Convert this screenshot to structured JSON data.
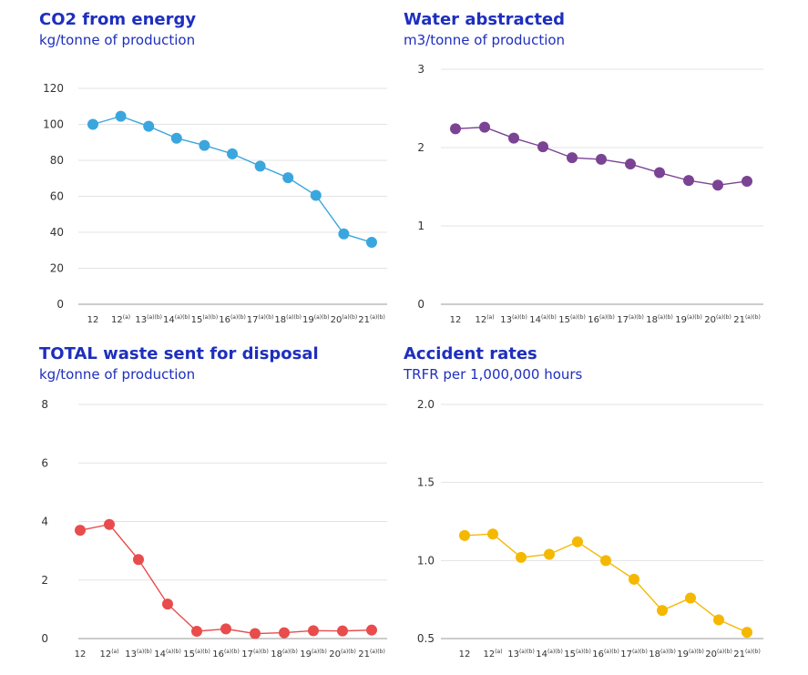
{
  "chart_data": [
    {
      "type": "line",
      "title": "CO2 from energy",
      "subtitle": "kg/tonne of production",
      "categories": [
        "12",
        "12(a)",
        "13(a)(b)",
        "14(a)(b)",
        "15(a)(b)",
        "16(a)(b)",
        "17(a)(b)",
        "18(a)(b)",
        "19(a)(b)",
        "20(a)(b)",
        "21(a)(b)"
      ],
      "category_labels": [
        {
          "main": "12",
          "sup": ""
        },
        {
          "main": "12",
          "sup": "(a)"
        },
        {
          "main": "13",
          "sup": "(a)(b)"
        },
        {
          "main": "14",
          "sup": "(a)(b)"
        },
        {
          "main": "15",
          "sup": "(a)(b)"
        },
        {
          "main": "16",
          "sup": "(a)(b)"
        },
        {
          "main": "17",
          "sup": "(a)(b)"
        },
        {
          "main": "18",
          "sup": "(a)(b)"
        },
        {
          "main": "19",
          "sup": "(a)(b)"
        },
        {
          "main": "20",
          "sup": "(a)(b)"
        },
        {
          "main": "21",
          "sup": "(a)(b)"
        }
      ],
      "values": [
        100,
        104.5,
        98.9,
        92.3,
        88.3,
        83.6,
        76.8,
        70.3,
        60.5,
        39.1,
        34.4
      ],
      "ylim": [
        0,
        120
      ],
      "yticks": [
        "0",
        "20",
        "40",
        "60",
        "80",
        "100",
        "120"
      ],
      "color": "#3aa6de",
      "grid": true
    },
    {
      "type": "line",
      "title": "Water abstracted",
      "subtitle": "m3/tonne of production",
      "categories": [
        "12",
        "12(a)",
        "13(a)(b)",
        "14(a)(b)",
        "15(a)(b)",
        "16(a)(b)",
        "17(a)(b)",
        "18(a)(b)",
        "19(a)(b)",
        "20(a)(b)",
        "21(a)(b)"
      ],
      "category_labels": [
        {
          "main": "12",
          "sup": ""
        },
        {
          "main": "12",
          "sup": "(a)"
        },
        {
          "main": "13",
          "sup": "(a)(b)"
        },
        {
          "main": "14",
          "sup": "(a)(b)"
        },
        {
          "main": "15",
          "sup": "(a)(b)"
        },
        {
          "main": "16",
          "sup": "(a)(b)"
        },
        {
          "main": "17",
          "sup": "(a)(b)"
        },
        {
          "main": "18",
          "sup": "(a)(b)"
        },
        {
          "main": "19",
          "sup": "(a)(b)"
        },
        {
          "main": "20",
          "sup": "(a)(b)"
        },
        {
          "main": "21",
          "sup": "(a)(b)"
        }
      ],
      "values": [
        2.24,
        2.26,
        2.12,
        2.01,
        1.87,
        1.85,
        1.79,
        1.68,
        1.58,
        1.52,
        1.57
      ],
      "ylim": [
        0,
        3
      ],
      "yticks": [
        "0",
        "1",
        "2",
        "3"
      ],
      "color": "#7b4394",
      "grid": true
    },
    {
      "type": "line",
      "title": "TOTAL waste sent for disposal",
      "subtitle": "kg/tonne of production",
      "categories": [
        "12",
        "12(a)",
        "13(a)(b)",
        "14(a)(b)",
        "15(a)(b)",
        "16(a)(b)",
        "17(a)(b)",
        "18(a)(b)",
        "19(a)(b)",
        "20(a)(b)",
        "21(a)(b)"
      ],
      "category_labels": [
        {
          "main": "12",
          "sup": ""
        },
        {
          "main": "12",
          "sup": "(a)"
        },
        {
          "main": "13",
          "sup": "(a)(b)"
        },
        {
          "main": "14",
          "sup": "(a)(b)"
        },
        {
          "main": "15",
          "sup": "(a)(b)"
        },
        {
          "main": "16",
          "sup": "(a)(b)"
        },
        {
          "main": "17",
          "sup": "(a)(b)"
        },
        {
          "main": "18",
          "sup": "(a)(b)"
        },
        {
          "main": "19",
          "sup": "(a)(b)"
        },
        {
          "main": "20",
          "sup": "(a)(b)"
        },
        {
          "main": "21",
          "sup": "(a)(b)"
        }
      ],
      "values": [
        3.7,
        3.9,
        2.7,
        1.18,
        0.25,
        0.33,
        0.17,
        0.2,
        0.27,
        0.26,
        0.29
      ],
      "ylim": [
        0,
        8
      ],
      "yticks": [
        "0",
        "2",
        "4",
        "6",
        "8"
      ],
      "color": "#e84c4c",
      "grid": true
    },
    {
      "type": "line",
      "title": "Accident rates",
      "subtitle": "TRFR per 1,000,000 hours",
      "categories": [
        "12",
        "12(a)",
        "13(a)(b)",
        "14(a)(b)",
        "15(a)(b)",
        "16(a)(b)",
        "17(a)(b)",
        "18(a)(b)",
        "19(a)(b)",
        "20(a)(b)",
        "21(a)(b)"
      ],
      "category_labels": [
        {
          "main": "12",
          "sup": ""
        },
        {
          "main": "12",
          "sup": "(a)"
        },
        {
          "main": "13",
          "sup": "(a)(b)"
        },
        {
          "main": "14",
          "sup": "(a)(b)"
        },
        {
          "main": "15",
          "sup": "(a)(b)"
        },
        {
          "main": "16",
          "sup": "(a)(b)"
        },
        {
          "main": "17",
          "sup": "(a)(b)"
        },
        {
          "main": "18",
          "sup": "(a)(b)"
        },
        {
          "main": "19",
          "sup": "(a)(b)"
        },
        {
          "main": "20",
          "sup": "(a)(b)"
        },
        {
          "main": "21",
          "sup": "(a)(b)"
        }
      ],
      "values": [
        1.16,
        1.17,
        1.02,
        1.04,
        1.12,
        1.0,
        0.88,
        0.68,
        0.76,
        0.62,
        0.54
      ],
      "ylim": [
        0.5,
        2.0
      ],
      "yticks": [
        "0.5",
        "1.0",
        "1.5",
        "2.0"
      ],
      "color": "#f5b800",
      "grid": true
    }
  ]
}
